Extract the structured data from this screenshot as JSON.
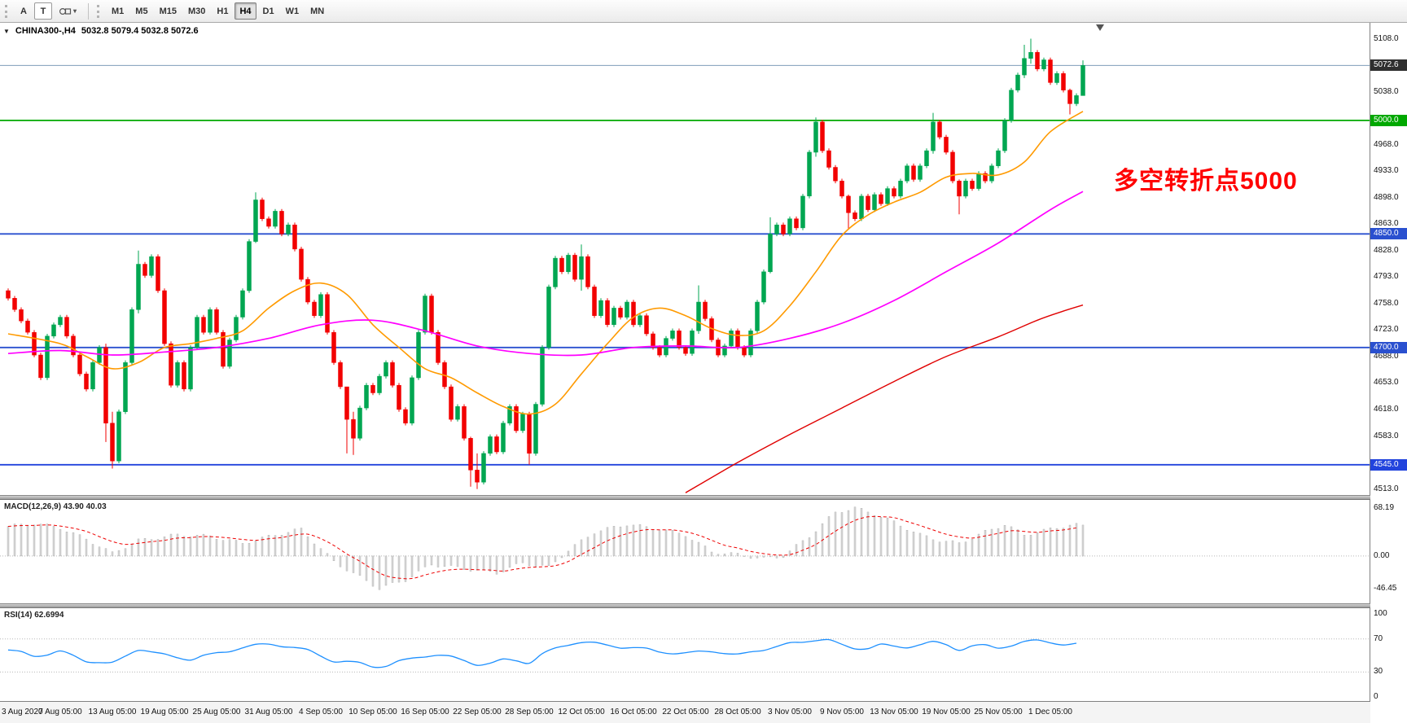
{
  "toolbar": {
    "annotation_tools": [
      "A",
      "T"
    ],
    "timeframes": [
      "M1",
      "M5",
      "M15",
      "M30",
      "H1",
      "H4",
      "D1",
      "W1",
      "MN"
    ],
    "active_timeframe": "H4"
  },
  "header": {
    "symbol": "CHINA300-,H4",
    "ohlc": "5032.8 5079.4 5032.8 5072.6"
  },
  "chart_data": {
    "type": "candlestick",
    "title": "CHINA300-,H4",
    "ohlc_display": {
      "open": "5032.8",
      "high": "5079.4",
      "low": "5032.8",
      "close": "5072.6"
    },
    "annotation": {
      "text": "多空转折点5000",
      "color": "#ff0000"
    },
    "ylim": [
      4505,
      5129
    ],
    "x_labels": [
      "3 Aug 2020",
      "7 Aug 05:00",
      "13 Aug 05:00",
      "19 Aug 05:00",
      "25 Aug 05:00",
      "31 Aug 05:00",
      "4 Sep 05:00",
      "10 Sep 05:00",
      "16 Sep 05:00",
      "22 Sep 05:00",
      "28 Sep 05:00",
      "12 Oct 05:00",
      "16 Oct 05:00",
      "22 Oct 05:00",
      "28 Oct 05:00",
      "3 Nov 05:00",
      "9 Nov 05:00",
      "13 Nov 05:00",
      "19 Nov 05:00",
      "25 Nov 05:00",
      "1 Dec 05:00"
    ],
    "price_ticks": [
      [
        5108,
        "5108.0"
      ],
      [
        5038,
        "5038.0"
      ],
      [
        4968,
        "4968.0"
      ],
      [
        4933,
        "4933.0"
      ],
      [
        4898,
        "4898.0"
      ],
      [
        4863,
        "4863.0"
      ],
      [
        4828,
        "4828.0"
      ],
      [
        4793,
        "4793.0"
      ],
      [
        4758,
        "4758.0"
      ],
      [
        4723,
        "4723.0"
      ],
      [
        4688,
        "4688.0"
      ],
      [
        4653,
        "4653.0"
      ],
      [
        4618,
        "4618.0"
      ],
      [
        4583,
        "4583.0"
      ],
      [
        4513,
        "4513.0"
      ]
    ],
    "hlines": [
      {
        "price": 5072.6,
        "color": "#7f9db9",
        "width": 1,
        "label": "5072.6",
        "label_bg": "#2f2f2f",
        "name": "last-price"
      },
      {
        "price": 5000.0,
        "color": "#00a800",
        "width": 1.8,
        "label": "5000.0",
        "label_bg": "#00a800",
        "name": "level-5000"
      },
      {
        "price": 4850.0,
        "color": "#2a50cf",
        "width": 1.8,
        "label": "4850.0",
        "label_bg": "#2a50cf",
        "name": "level-4850"
      },
      {
        "price": 4700.0,
        "color": "#2a50cf",
        "width": 1.8,
        "label": "4700.0",
        "label_bg": "#2a50cf",
        "name": "level-4700"
      },
      {
        "price": 4545.0,
        "color": "#2244dd",
        "width": 1.8,
        "label": "4545.0",
        "label_bg": "#2244dd",
        "name": "level-4545"
      }
    ],
    "colors": {
      "up": "#00a651",
      "down": "#f20000",
      "ma_fast": "#ff9a00",
      "ma_mid": "#ff00ff",
      "ma_slow": "#e00000",
      "hist": "#d8d8d8",
      "hist_stroke": "#ababab",
      "macd_signal": "#ee0000",
      "rsi": "#1e90ff",
      "levels_dotted": "#b8b8b8",
      "shift_marker": "#555555"
    },
    "candles": {
      "first_open": 4775,
      "closes": [
        4765,
        4750,
        4735,
        4720,
        4690,
        4660,
        4715,
        4730,
        4740,
        4715,
        4690,
        4665,
        4645,
        4680,
        4700,
        4600,
        4550,
        4615,
        4680,
        4750,
        4810,
        4795,
        4820,
        4775,
        4705,
        4650,
        4680,
        4645,
        4700,
        4740,
        4720,
        4750,
        4720,
        4675,
        4710,
        4740,
        4775,
        4840,
        4895,
        4870,
        4860,
        4880,
        4850,
        4862,
        4830,
        4790,
        4760,
        4742,
        4770,
        4720,
        4680,
        4648,
        4605,
        4580,
        4620,
        4650,
        4640,
        4662,
        4680,
        4650,
        4618,
        4600,
        4660,
        4720,
        4768,
        4720,
        4680,
        4648,
        4605,
        4622,
        4580,
        4538,
        4522,
        4560,
        4582,
        4562,
        4600,
        4622,
        4590,
        4612,
        4560,
        4625,
        4700,
        4780,
        4818,
        4800,
        4822,
        4790,
        4820,
        4780,
        4742,
        4762,
        4730,
        4752,
        4740,
        4760,
        4730,
        4742,
        4718,
        4700,
        4690,
        4712,
        4722,
        4700,
        4692,
        4722,
        4760,
        4738,
        4710,
        4690,
        4702,
        4722,
        4700,
        4690,
        4722,
        4760,
        4800,
        4850,
        4862,
        4850,
        4870,
        4858,
        4900,
        4958,
        4998,
        4960,
        4938,
        4920,
        4900,
        4878,
        4870,
        4900,
        4882,
        4902,
        4890,
        4910,
        4900,
        4920,
        4940,
        4922,
        4940,
        4960,
        4998,
        4978,
        4958,
        4920,
        4900,
        4920,
        4910,
        4930,
        4920,
        4940,
        4960,
        5000,
        5040,
        5060,
        5082,
        5090,
        5068,
        5080,
        5050,
        5062,
        5040,
        5022,
        5032.8,
        5072.6
      ],
      "overrides": {
        "15": [
          4705,
          4575
        ],
        "16": [
          4615,
          4540
        ],
        "20": [
          4828,
          4745
        ],
        "38": [
          4905,
          4838
        ],
        "52": [
          4648,
          4560
        ],
        "53": [
          4615,
          4558
        ],
        "71": [
          4582,
          4516
        ],
        "72": [
          4560,
          4513
        ],
        "80": [
          4615,
          4545
        ],
        "88": [
          4836,
          4775
        ],
        "106": [
          4782,
          4718
        ],
        "117": [
          4872,
          4798
        ],
        "124": [
          5004,
          4952
        ],
        "129": [
          4902,
          4856
        ],
        "142": [
          5010,
          4956
        ],
        "146": [
          4922,
          4876
        ],
        "156": [
          5100,
          5056
        ],
        "157": [
          5108,
          5075
        ],
        "163": [
          5042,
          5008
        ],
        "165": [
          5079.4,
          5032.8
        ]
      }
    },
    "ma_fast": [
      [
        0,
        4718
      ],
      [
        8,
        4705
      ],
      [
        12,
        4688
      ],
      [
        16,
        4672
      ],
      [
        20,
        4680
      ],
      [
        24,
        4700
      ],
      [
        28,
        4705
      ],
      [
        32,
        4712
      ],
      [
        36,
        4722
      ],
      [
        40,
        4752
      ],
      [
        44,
        4775
      ],
      [
        48,
        4785
      ],
      [
        52,
        4770
      ],
      [
        56,
        4730
      ],
      [
        60,
        4700
      ],
      [
        64,
        4672
      ],
      [
        68,
        4660
      ],
      [
        72,
        4640
      ],
      [
        76,
        4622
      ],
      [
        80,
        4612
      ],
      [
        84,
        4625
      ],
      [
        88,
        4665
      ],
      [
        92,
        4705
      ],
      [
        96,
        4740
      ],
      [
        100,
        4752
      ],
      [
        104,
        4742
      ],
      [
        108,
        4725
      ],
      [
        112,
        4716
      ],
      [
        116,
        4722
      ],
      [
        120,
        4755
      ],
      [
        124,
        4800
      ],
      [
        128,
        4848
      ],
      [
        132,
        4875
      ],
      [
        136,
        4892
      ],
      [
        140,
        4905
      ],
      [
        144,
        4925
      ],
      [
        148,
        4930
      ],
      [
        152,
        4928
      ],
      [
        156,
        4945
      ],
      [
        160,
        4985
      ],
      [
        165,
        5012
      ]
    ],
    "ma_mid": [
      [
        0,
        4692
      ],
      [
        8,
        4696
      ],
      [
        16,
        4690
      ],
      [
        24,
        4694
      ],
      [
        32,
        4700
      ],
      [
        40,
        4712
      ],
      [
        48,
        4730
      ],
      [
        56,
        4736
      ],
      [
        64,
        4722
      ],
      [
        72,
        4702
      ],
      [
        80,
        4692
      ],
      [
        88,
        4690
      ],
      [
        96,
        4700
      ],
      [
        104,
        4702
      ],
      [
        112,
        4700
      ],
      [
        120,
        4712
      ],
      [
        128,
        4732
      ],
      [
        136,
        4762
      ],
      [
        144,
        4800
      ],
      [
        152,
        4838
      ],
      [
        160,
        4882
      ],
      [
        165,
        4906
      ]
    ],
    "ma_slow": [
      [
        104,
        4508
      ],
      [
        112,
        4548
      ],
      [
        120,
        4585
      ],
      [
        128,
        4620
      ],
      [
        136,
        4655
      ],
      [
        144,
        4688
      ],
      [
        152,
        4714
      ],
      [
        158,
        4736
      ],
      [
        162,
        4748
      ],
      [
        165,
        4756
      ]
    ],
    "macd": {
      "label": "MACD(12,26,9) 43.90 40.03",
      "ticks": [
        [
          68.19,
          "68.19"
        ],
        [
          0,
          "0.00"
        ],
        [
          -46.45,
          "-46.45"
        ]
      ],
      "anchors": [
        [
          0,
          42
        ],
        [
          4,
          46
        ],
        [
          8,
          40
        ],
        [
          12,
          24
        ],
        [
          16,
          4
        ],
        [
          20,
          22
        ],
        [
          26,
          30
        ],
        [
          31,
          28
        ],
        [
          36,
          18
        ],
        [
          41,
          30
        ],
        [
          45,
          38
        ],
        [
          50,
          -8
        ],
        [
          54,
          -30
        ],
        [
          57,
          -46
        ],
        [
          61,
          -34
        ],
        [
          65,
          -12
        ],
        [
          70,
          -18
        ],
        [
          75,
          -24
        ],
        [
          79,
          -10
        ],
        [
          83,
          -16
        ],
        [
          86,
          8
        ],
        [
          90,
          34
        ],
        [
          95,
          45
        ],
        [
          100,
          38
        ],
        [
          104,
          30
        ],
        [
          108,
          6
        ],
        [
          112,
          2
        ],
        [
          116,
          -4
        ],
        [
          119,
          0
        ],
        [
          123,
          28
        ],
        [
          127,
          62
        ],
        [
          130,
          68
        ],
        [
          133,
          60
        ],
        [
          136,
          48
        ],
        [
          140,
          30
        ],
        [
          143,
          22
        ],
        [
          146,
          18
        ],
        [
          150,
          34
        ],
        [
          153,
          45
        ],
        [
          156,
          30
        ],
        [
          160,
          38
        ],
        [
          163,
          44
        ],
        [
          165,
          43.9
        ]
      ]
    },
    "rsi": {
      "label": "RSI(14) 62.6994",
      "ticks": [
        [
          100,
          "100"
        ],
        [
          70,
          "70"
        ],
        [
          30,
          "30"
        ],
        [
          0,
          "0"
        ]
      ],
      "levels": [
        70,
        30
      ],
      "anchors": [
        [
          0,
          56
        ],
        [
          4,
          50
        ],
        [
          8,
          54
        ],
        [
          12,
          44
        ],
        [
          16,
          40
        ],
        [
          20,
          58
        ],
        [
          24,
          50
        ],
        [
          28,
          46
        ],
        [
          32,
          52
        ],
        [
          36,
          60
        ],
        [
          41,
          64
        ],
        [
          45,
          58
        ],
        [
          50,
          44
        ],
        [
          54,
          40
        ],
        [
          57,
          36
        ],
        [
          61,
          44
        ],
        [
          65,
          52
        ],
        [
          70,
          44
        ],
        [
          73,
          38
        ],
        [
          77,
          46
        ],
        [
          80,
          42
        ],
        [
          83,
          55
        ],
        [
          87,
          67
        ],
        [
          90,
          64
        ],
        [
          95,
          60
        ],
        [
          100,
          55
        ],
        [
          104,
          52
        ],
        [
          108,
          56
        ],
        [
          112,
          50
        ],
        [
          116,
          58
        ],
        [
          119,
          62
        ],
        [
          123,
          68
        ],
        [
          125,
          71
        ],
        [
          128,
          62
        ],
        [
          131,
          58
        ],
        [
          134,
          62
        ],
        [
          137,
          60
        ],
        [
          140,
          63
        ],
        [
          143,
          66
        ],
        [
          146,
          58
        ],
        [
          149,
          62
        ],
        [
          152,
          60
        ],
        [
          155,
          64
        ],
        [
          159,
          69
        ],
        [
          162,
          63
        ],
        [
          165,
          62.7
        ]
      ]
    }
  }
}
